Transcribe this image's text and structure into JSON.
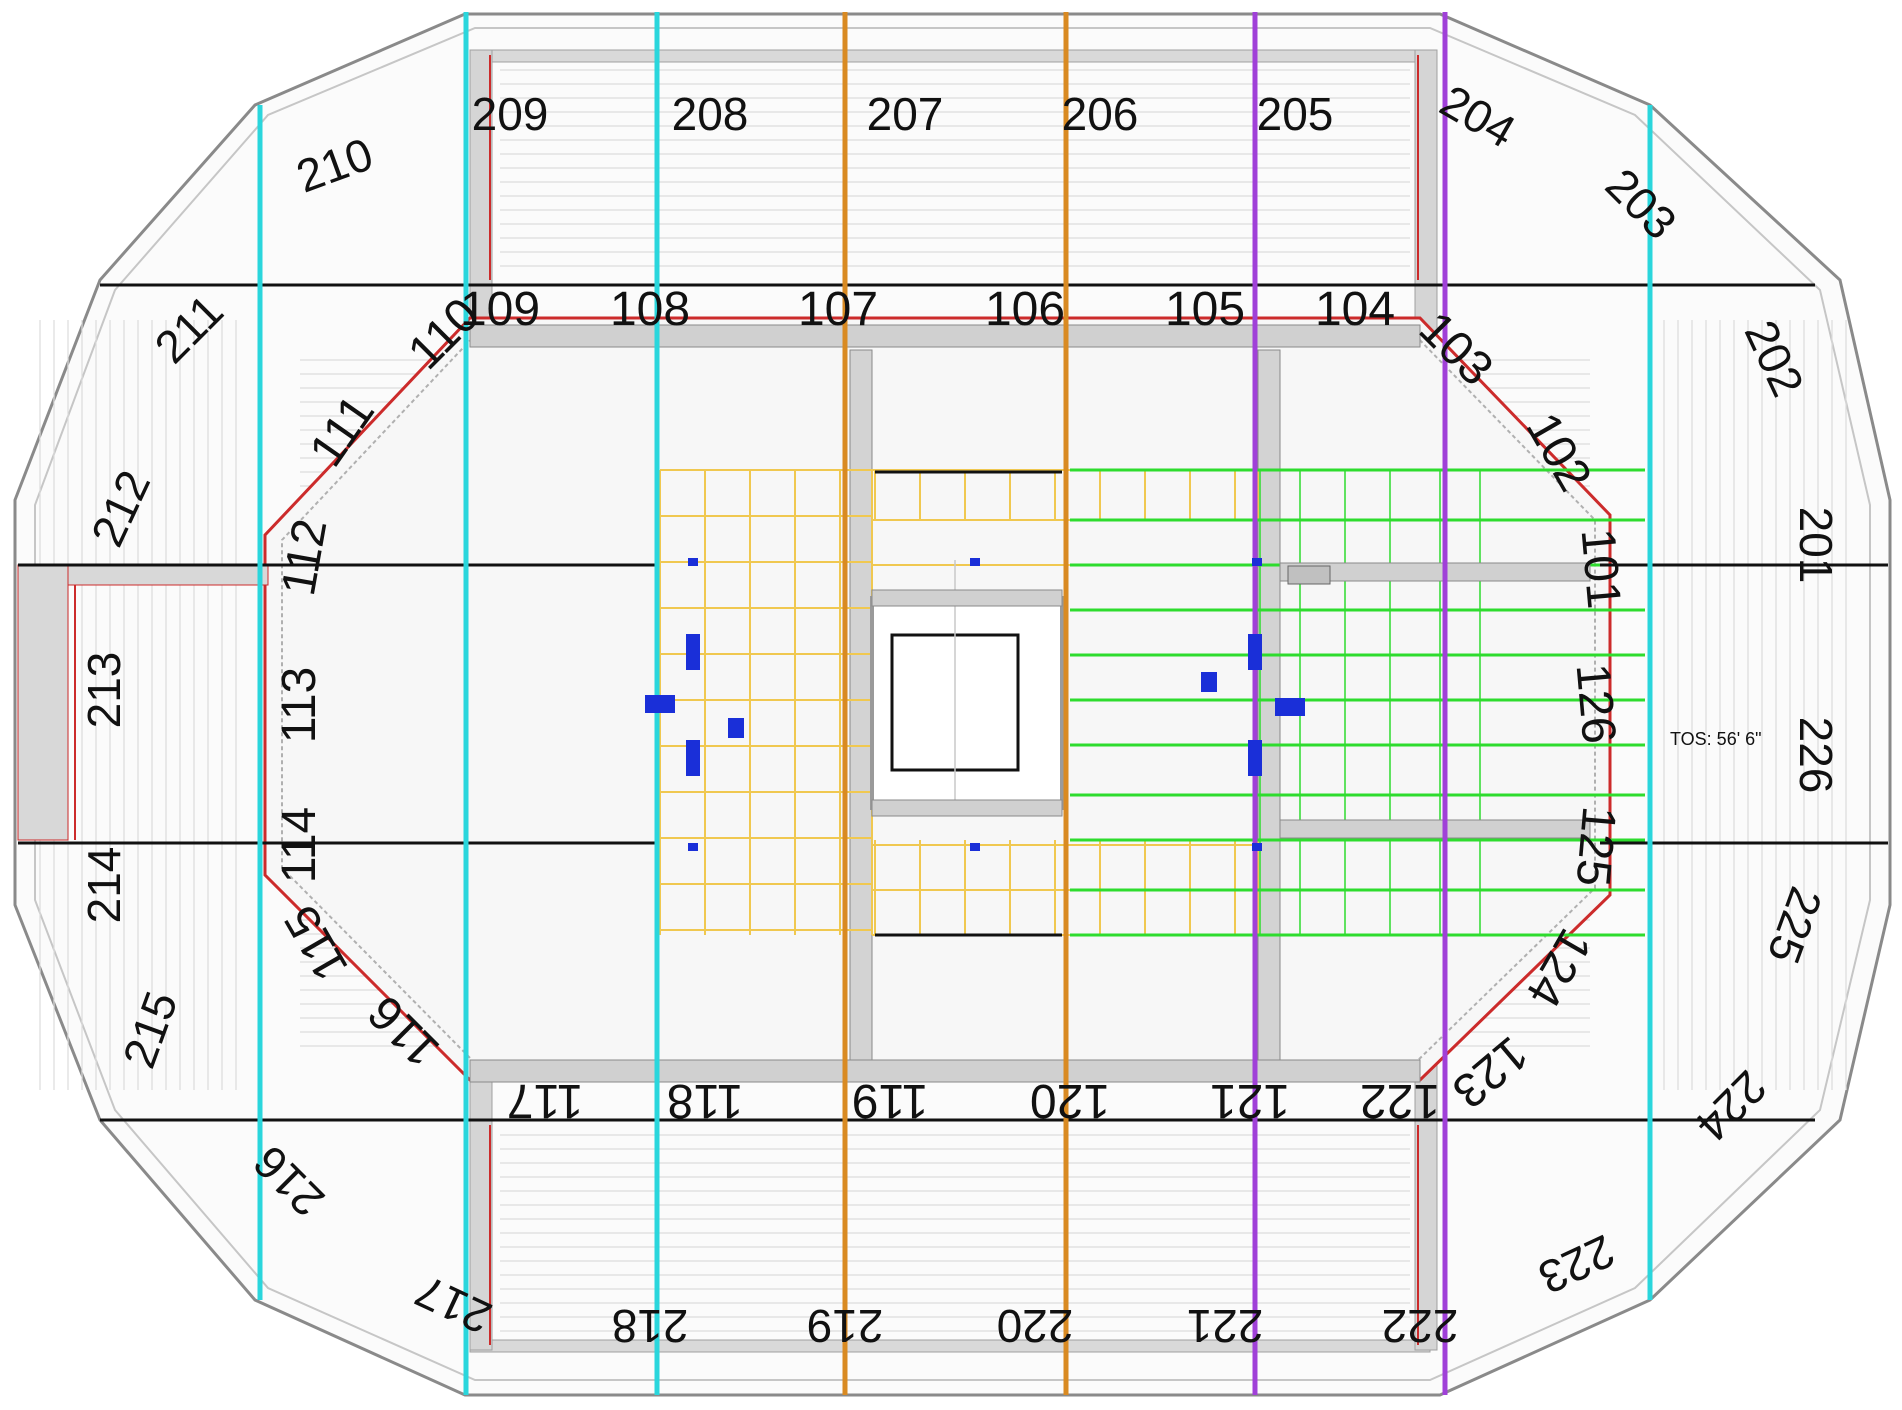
{
  "colors": {
    "cyan": "#2ad6dc",
    "orange": "#d98a22",
    "purple": "#a040d8",
    "black": "#111111",
    "yellow_grid": "#f0c850",
    "green_grid": "#2edc2e",
    "red_outline": "#cc2b2b",
    "marker_blue": "#1a2fd8",
    "structure_gray": "#b8b8b8"
  },
  "sections_upper": [
    {
      "label": "209"
    },
    {
      "label": "208"
    },
    {
      "label": "207"
    },
    {
      "label": "206"
    },
    {
      "label": "205"
    },
    {
      "label": "204"
    },
    {
      "label": "203"
    },
    {
      "label": "202"
    },
    {
      "label": "201"
    },
    {
      "label": "226"
    },
    {
      "label": "225"
    },
    {
      "label": "224"
    },
    {
      "label": "223"
    },
    {
      "label": "222"
    },
    {
      "label": "221"
    },
    {
      "label": "220"
    },
    {
      "label": "219"
    },
    {
      "label": "218"
    },
    {
      "label": "217"
    },
    {
      "label": "216"
    },
    {
      "label": "215"
    },
    {
      "label": "214"
    },
    {
      "label": "213"
    },
    {
      "label": "212"
    },
    {
      "label": "211"
    },
    {
      "label": "210"
    }
  ],
  "sections_lower": [
    {
      "label": "109"
    },
    {
      "label": "108"
    },
    {
      "label": "107"
    },
    {
      "label": "106"
    },
    {
      "label": "105"
    },
    {
      "label": "104"
    },
    {
      "label": "103"
    },
    {
      "label": "102"
    },
    {
      "label": "101"
    },
    {
      "label": "126"
    },
    {
      "label": "125"
    },
    {
      "label": "124"
    },
    {
      "label": "123"
    },
    {
      "label": "122"
    },
    {
      "label": "121"
    },
    {
      "label": "120"
    },
    {
      "label": "119"
    },
    {
      "label": "118"
    },
    {
      "label": "117"
    },
    {
      "label": "116"
    },
    {
      "label": "115"
    },
    {
      "label": "114"
    },
    {
      "label": "113"
    },
    {
      "label": "112"
    },
    {
      "label": "111"
    },
    {
      "label": "110"
    }
  ],
  "annotation": "TOS: 56' 6\"",
  "dividers": [
    {
      "color": "cyan"
    },
    {
      "color": "cyan"
    },
    {
      "color": "cyan"
    },
    {
      "color": "orange"
    },
    {
      "color": "orange"
    },
    {
      "color": "purple"
    },
    {
      "color": "purple"
    },
    {
      "color": "cyan"
    }
  ]
}
